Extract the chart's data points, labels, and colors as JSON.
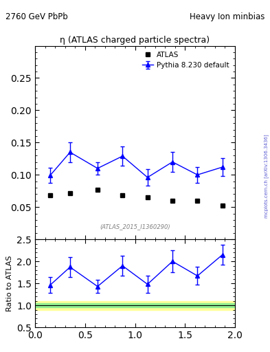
{
  "title_left": "2760 GeV PbPb",
  "title_right": "Heavy Ion minbias",
  "plot_title": "η (ATLAS charged particle spectra)",
  "ref_label": "(ATLAS_2015_I1360290)",
  "atlas_label": "ATLAS",
  "pythia_label": "Pythia 8.230 default",
  "watermark": "mcplots.cern.ch [arXiv:1306.3436]",
  "xlabel": "",
  "ylabel_ratio": "Ratio to ATLAS",
  "xlim": [
    0,
    2
  ],
  "ylim_main": [
    0.0,
    0.3
  ],
  "ylim_ratio": [
    0.5,
    2.5
  ],
  "yticks_main": [
    0.05,
    0.1,
    0.15,
    0.2,
    0.25
  ],
  "yticks_ratio": [
    0.5,
    1.0,
    1.5,
    2.0,
    2.5
  ],
  "xticks": [
    0,
    0.5,
    1.0,
    1.5,
    2.0
  ],
  "atlas_x": [
    0.15,
    0.35,
    0.625,
    0.875,
    1.125,
    1.375,
    1.625,
    1.875
  ],
  "atlas_y": [
    0.068,
    0.072,
    0.077,
    0.068,
    0.065,
    0.06,
    0.06,
    0.052
  ],
  "pythia_x": [
    0.15,
    0.35,
    0.625,
    0.875,
    1.125,
    1.375,
    1.625,
    1.875
  ],
  "pythia_y": [
    0.099,
    0.135,
    0.11,
    0.129,
    0.096,
    0.12,
    0.1,
    0.112
  ],
  "pythia_yerr_lo": [
    0.012,
    0.015,
    0.01,
    0.015,
    0.013,
    0.015,
    0.012,
    0.014
  ],
  "pythia_yerr_hi": [
    0.012,
    0.015,
    0.01,
    0.015,
    0.013,
    0.015,
    0.012,
    0.014
  ],
  "ratio_x": [
    0.15,
    0.35,
    0.625,
    0.875,
    1.125,
    1.375,
    1.625,
    1.875
  ],
  "ratio_y": [
    1.46,
    1.87,
    1.43,
    1.9,
    1.48,
    2.0,
    1.67,
    2.15
  ],
  "ratio_yerr_lo": [
    0.18,
    0.22,
    0.15,
    0.22,
    0.2,
    0.25,
    0.2,
    0.22
  ],
  "ratio_yerr_hi": [
    0.18,
    0.22,
    0.15,
    0.22,
    0.2,
    0.25,
    0.2,
    0.22
  ],
  "band_green_lo": 0.95,
  "band_green_hi": 1.05,
  "band_yellow_lo": 0.9,
  "band_yellow_hi": 1.1,
  "atlas_color": "#000000",
  "pythia_color": "#0000ff",
  "band_green_color": "#90EE90",
  "band_yellow_color": "#FFFF99",
  "fig_width": 3.93,
  "fig_height": 5.12
}
